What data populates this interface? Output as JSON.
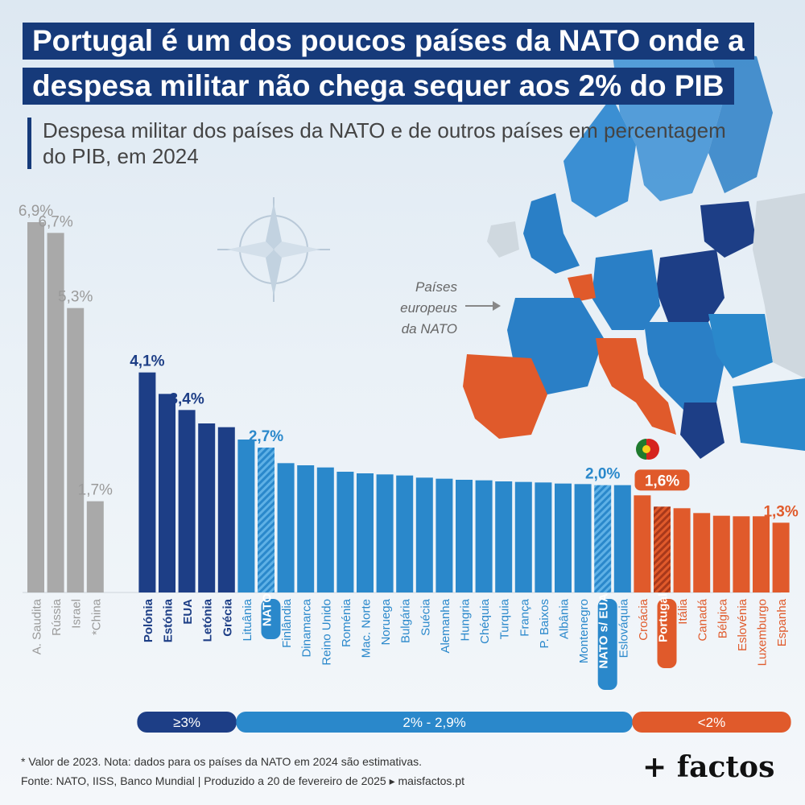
{
  "title_lines": [
    "Portugal é um dos poucos países da NATO onde a",
    "despesa militar não chega sequer aos 2% do PIB"
  ],
  "subtitle_lines": [
    "Despesa militar dos países da NATO e de outros países em percentagem",
    "do PIB, em 2024"
  ],
  "map_label_lines": [
    "Países",
    "europeus",
    "da NATO"
  ],
  "footnotes": [
    "* Valor de 2023. Nota: dados para os países da NATO em 2024 são estimativas.",
    "Fonte: NATO, IISS, Banco Mundial  |  Produzido a 20 de fevereiro de 2025 ▸ maisfactos.pt"
  ],
  "brand": "+ factos",
  "colors": {
    "gray": "#a9a9a9",
    "dark_blue": "#1d3e86",
    "mid_blue": "#2a88cb",
    "orange": "#e05a2b",
    "title_bg": "#163a7a"
  },
  "chart_data": {
    "type": "bar",
    "ylim": [
      0,
      7.2
    ],
    "categories": [
      "A. Saudita",
      "Rússia",
      "Israel",
      "*China",
      "Polónia",
      "Estónia",
      "EUA",
      "Letónia",
      "Grécia",
      "Lituânia",
      "NATO",
      "Finlândia",
      "Dinamarca",
      "Reino Unido",
      "Roménia",
      "Mac. Norte",
      "Noruega",
      "Bulgária",
      "Suécia",
      "Alemanha",
      "Hungria",
      "Chéquia",
      "Turquia",
      "França",
      "P. Baixos",
      "Albânia",
      "Montenegro",
      "NATO s/ EUA",
      "Eslováquia",
      "Croácia",
      "Portugal",
      "Itália",
      "Canadá",
      "Bélgica",
      "Eslovénia",
      "Luxemburgo",
      "Espanha"
    ],
    "values": [
      6.9,
      6.7,
      5.3,
      1.7,
      4.1,
      3.7,
      3.4,
      3.15,
      3.08,
      2.85,
      2.7,
      2.41,
      2.37,
      2.33,
      2.25,
      2.22,
      2.2,
      2.18,
      2.14,
      2.12,
      2.1,
      2.09,
      2.07,
      2.06,
      2.05,
      2.03,
      2.02,
      2.0,
      2.0,
      1.81,
      1.6,
      1.57,
      1.48,
      1.43,
      1.42,
      1.42,
      1.3
    ],
    "groups": [
      "other",
      "other",
      "other",
      "other",
      "high",
      "high",
      "high",
      "high",
      "high",
      "mid",
      "mid",
      "mid",
      "mid",
      "mid",
      "mid",
      "mid",
      "mid",
      "mid",
      "mid",
      "mid",
      "mid",
      "mid",
      "mid",
      "mid",
      "mid",
      "mid",
      "mid",
      "mid",
      "mid",
      "low",
      "low",
      "low",
      "low",
      "low",
      "low",
      "low",
      "low"
    ],
    "highlighted": [
      "NATO",
      "NATO s/ EUA",
      "Portugal"
    ],
    "value_labels": {
      "A. Saudita": "6,9%",
      "Rússia": "6,7%",
      "Israel": "5,3%",
      "*China": "1,7%",
      "Polónia": "4,1%",
      "EUA": "3,4%",
      "NATO": "2,7%",
      "NATO s/ EUA": "2,0%",
      "Portugal": "1,6%",
      "Espanha": "1,3%"
    },
    "bands": [
      {
        "label": "≥3%",
        "group": "high"
      },
      {
        "label": "2% - 2,9%",
        "group": "mid"
      },
      {
        "label": "<2%",
        "group": "low"
      }
    ]
  }
}
